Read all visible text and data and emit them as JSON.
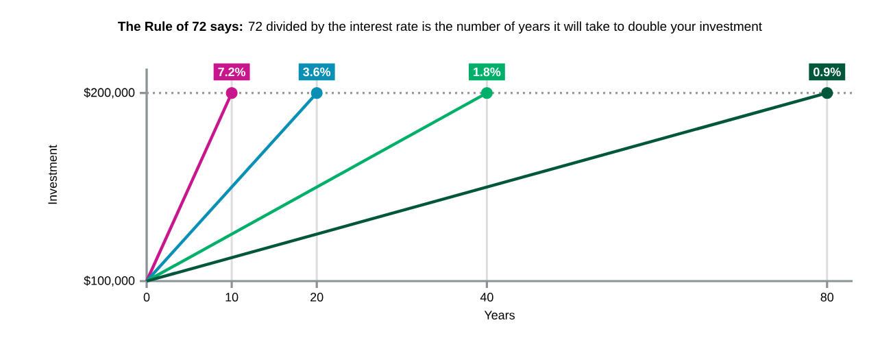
{
  "chart_data": {
    "type": "line",
    "title": "**The Rule of 72 says:** 72 divided by the interest rate is the number of years it will take to double your investment",
    "xlabel": "Years",
    "ylabel": "Investment",
    "series": [
      {
        "name": "7.2%",
        "color": "#c8168c",
        "x": [
          0,
          10
        ],
        "values": [
          100000,
          200000
        ]
      },
      {
        "name": "3.6%",
        "color": "#0a8fb5",
        "x": [
          0,
          20
        ],
        "values": [
          100000,
          200000
        ]
      },
      {
        "name": "1.8%",
        "color": "#00b06a",
        "x": [
          0,
          40
        ],
        "values": [
          100000,
          200000
        ]
      },
      {
        "name": "0.9%",
        "color": "#00573a",
        "x": [
          0,
          80
        ],
        "values": [
          100000,
          200000
        ]
      }
    ],
    "xlim": [
      0,
      83
    ],
    "ylim": [
      100000,
      213000
    ],
    "xticks": [
      0,
      10,
      20,
      40,
      80
    ],
    "yticks": [
      {
        "value": 100000,
        "label": "$100,000"
      },
      {
        "value": 200000,
        "label": "$200,000"
      }
    ],
    "ref_lines": [
      {
        "axis": "y",
        "value": 200000,
        "color": "#999999",
        "line_style": "dotted"
      }
    ],
    "grid": "x",
    "marker": "circle",
    "line_style": "solid"
  }
}
